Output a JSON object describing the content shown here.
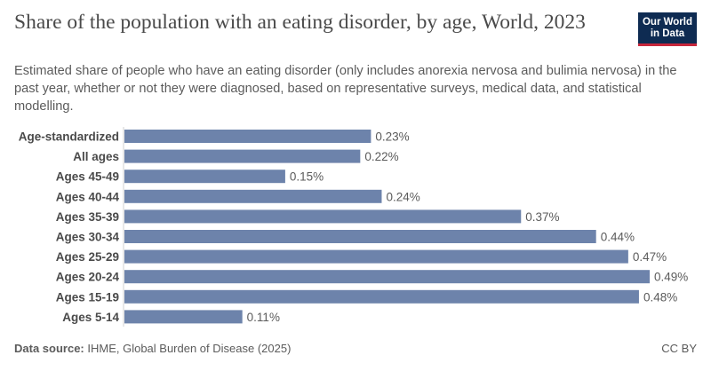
{
  "header": {
    "title": "Share of the population with an eating disorder, by age, World, 2023",
    "subtitle": "Estimated share of people who have an eating disorder (only includes anorexia nervosa and bulimia nervosa) in the past year, whether or not they were diagnosed, based on representative surveys, medical data, and statistical modelling."
  },
  "logo": {
    "line1": "Our World",
    "line2": "in Data"
  },
  "footer": {
    "source_label": "Data source:",
    "source_text": " IHME, Global Burden of Disease (2025)",
    "license": "CC BY"
  },
  "chart_data": {
    "type": "bar",
    "orientation": "horizontal",
    "categories": [
      "Age-standardized",
      "All ages",
      "Ages 45-49",
      "Ages 40-44",
      "Ages 35-39",
      "Ages 30-34",
      "Ages 25-29",
      "Ages 20-24",
      "Ages 15-19",
      "Ages 5-14"
    ],
    "values": [
      0.23,
      0.22,
      0.15,
      0.24,
      0.37,
      0.44,
      0.47,
      0.49,
      0.48,
      0.11
    ],
    "value_labels": [
      "0.23%",
      "0.22%",
      "0.15%",
      "0.24%",
      "0.37%",
      "0.44%",
      "0.47%",
      "0.49%",
      "0.48%",
      "0.11%"
    ],
    "xlim": [
      0,
      0.49
    ],
    "bar_color": "#6d83ab",
    "grid": false
  }
}
